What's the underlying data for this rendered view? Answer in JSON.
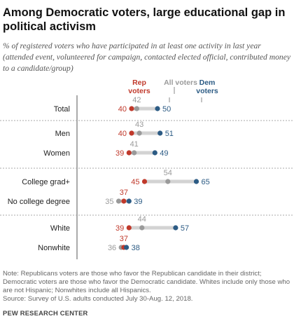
{
  "title": "Among Democratic voters, large educational gap in political activism",
  "subtitle": "% of registered voters who have participated in at least one activity in last year (attended event, volunteered for campaign, contacted elected official, contributed money to a candidate/group)",
  "legend": {
    "rep": "Rep voters",
    "all": "All voters",
    "dem": "Dem voters"
  },
  "colors": {
    "rep": "#c0392b",
    "all": "#9a9a9a",
    "dem": "#2c5b84",
    "line": "#d3d3d3"
  },
  "note": "Note: Republicans voters are those who favor the Republican candidate in their district; Democratic voters are those who favor the Democratic candidate. Whites include only those who are not Hispanic; Nonwhites include all Hispanics.",
  "source": "Source: Survey of U.S. adults conducted July 30-Aug. 12, 2018.",
  "brand": "PEW RESEARCH CENTER",
  "chart_data": {
    "type": "dot",
    "xlim": [
      30,
      70
    ],
    "series": [
      {
        "name": "Rep voters",
        "key": "rep"
      },
      {
        "name": "All voters",
        "key": "all"
      },
      {
        "name": "Dem voters",
        "key": "dem"
      }
    ],
    "rows": [
      {
        "label": "Total",
        "rep": 40,
        "all": 42,
        "dem": 50,
        "group": 0
      },
      {
        "label": "Men",
        "rep": 40,
        "all": 43,
        "dem": 51,
        "group": 1
      },
      {
        "label": "Women",
        "rep": 39,
        "all": 41,
        "dem": 49,
        "group": 1
      },
      {
        "label": "College grad+",
        "rep": 45,
        "all": 54,
        "dem": 65,
        "group": 2
      },
      {
        "label": "No college degree",
        "rep": 37,
        "all": 35,
        "dem": 39,
        "group": 2
      },
      {
        "label": "White",
        "rep": 39,
        "all": 44,
        "dem": 57,
        "group": 3
      },
      {
        "label": "Nonwhite",
        "rep": 37,
        "all": 36,
        "dem": 38,
        "group": 3
      }
    ]
  }
}
